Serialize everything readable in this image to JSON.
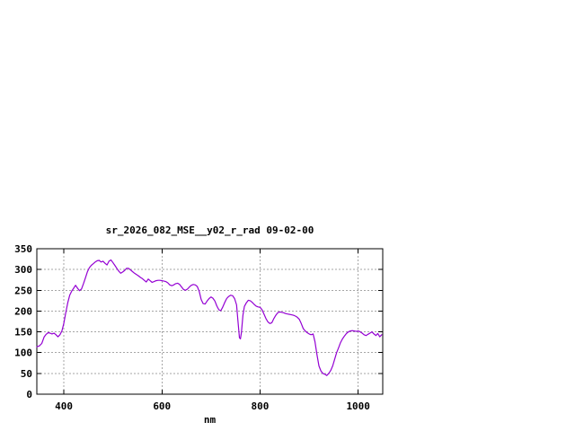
{
  "chart_data": {
    "type": "line",
    "title": "sr_2026_082_MSE__y02_r_rad 09-02-00",
    "xlabel": "nm",
    "ylabel": "",
    "xlim": [
      345,
      1050
    ],
    "ylim": [
      0,
      350
    ],
    "xticks": [
      400,
      600,
      800,
      1000
    ],
    "yticks": [
      0,
      50,
      100,
      150,
      200,
      250,
      300,
      350
    ],
    "grid": "on",
    "legend": "none",
    "line_color": "#9400D3",
    "grid_color": "#A6A6A6",
    "border_color": "#000000",
    "points": [
      [
        345,
        114
      ],
      [
        350,
        116
      ],
      [
        355,
        122
      ],
      [
        360,
        138
      ],
      [
        364,
        144
      ],
      [
        368,
        148
      ],
      [
        372,
        147
      ],
      [
        376,
        145
      ],
      [
        380,
        147
      ],
      [
        384,
        143
      ],
      [
        388,
        138
      ],
      [
        392,
        143
      ],
      [
        396,
        152
      ],
      [
        400,
        170
      ],
      [
        404,
        196
      ],
      [
        408,
        220
      ],
      [
        412,
        238
      ],
      [
        416,
        248
      ],
      [
        420,
        255
      ],
      [
        424,
        262
      ],
      [
        428,
        255
      ],
      [
        432,
        249
      ],
      [
        436,
        253
      ],
      [
        440,
        266
      ],
      [
        444,
        280
      ],
      [
        448,
        294
      ],
      [
        452,
        304
      ],
      [
        456,
        310
      ],
      [
        460,
        314
      ],
      [
        464,
        318
      ],
      [
        468,
        321
      ],
      [
        472,
        322
      ],
      [
        476,
        318
      ],
      [
        480,
        320
      ],
      [
        484,
        315
      ],
      [
        488,
        311
      ],
      [
        492,
        320
      ],
      [
        496,
        323
      ],
      [
        500,
        317
      ],
      [
        504,
        310
      ],
      [
        508,
        303
      ],
      [
        512,
        296
      ],
      [
        516,
        291
      ],
      [
        520,
        294
      ],
      [
        524,
        298
      ],
      [
        528,
        303
      ],
      [
        532,
        303
      ],
      [
        536,
        299
      ],
      [
        540,
        295
      ],
      [
        544,
        291
      ],
      [
        548,
        288
      ],
      [
        552,
        285
      ],
      [
        556,
        281
      ],
      [
        560,
        278
      ],
      [
        564,
        274
      ],
      [
        568,
        270
      ],
      [
        572,
        277
      ],
      [
        576,
        273
      ],
      [
        580,
        269
      ],
      [
        584,
        271
      ],
      [
        588,
        273
      ],
      [
        592,
        274
      ],
      [
        596,
        274
      ],
      [
        600,
        273
      ],
      [
        604,
        272
      ],
      [
        608,
        271
      ],
      [
        612,
        268
      ],
      [
        616,
        263
      ],
      [
        620,
        261
      ],
      [
        624,
        263
      ],
      [
        628,
        266
      ],
      [
        632,
        267
      ],
      [
        636,
        264
      ],
      [
        640,
        258
      ],
      [
        644,
        252
      ],
      [
        648,
        250
      ],
      [
        652,
        253
      ],
      [
        656,
        258
      ],
      [
        660,
        262
      ],
      [
        664,
        264
      ],
      [
        668,
        263
      ],
      [
        672,
        259
      ],
      [
        676,
        247
      ],
      [
        680,
        228
      ],
      [
        684,
        218
      ],
      [
        688,
        217
      ],
      [
        692,
        224
      ],
      [
        696,
        230
      ],
      [
        700,
        234
      ],
      [
        704,
        231
      ],
      [
        708,
        224
      ],
      [
        712,
        212
      ],
      [
        716,
        203
      ],
      [
        720,
        201
      ],
      [
        724,
        210
      ],
      [
        728,
        221
      ],
      [
        732,
        230
      ],
      [
        736,
        235
      ],
      [
        740,
        238
      ],
      [
        744,
        237
      ],
      [
        748,
        230
      ],
      [
        752,
        215
      ],
      [
        755,
        175
      ],
      [
        758,
        136
      ],
      [
        760,
        133
      ],
      [
        762,
        148
      ],
      [
        765,
        190
      ],
      [
        768,
        211
      ],
      [
        772,
        220
      ],
      [
        776,
        226
      ],
      [
        780,
        225
      ],
      [
        784,
        221
      ],
      [
        788,
        216
      ],
      [
        792,
        212
      ],
      [
        796,
        210
      ],
      [
        800,
        209
      ],
      [
        804,
        203
      ],
      [
        808,
        193
      ],
      [
        812,
        182
      ],
      [
        816,
        174
      ],
      [
        820,
        170
      ],
      [
        824,
        172
      ],
      [
        828,
        182
      ],
      [
        832,
        190
      ],
      [
        836,
        196
      ],
      [
        840,
        198
      ],
      [
        844,
        197
      ],
      [
        848,
        196
      ],
      [
        852,
        194
      ],
      [
        856,
        193
      ],
      [
        860,
        192
      ],
      [
        864,
        191
      ],
      [
        868,
        190
      ],
      [
        872,
        188
      ],
      [
        876,
        185
      ],
      [
        880,
        180
      ],
      [
        884,
        170
      ],
      [
        888,
        158
      ],
      [
        892,
        152
      ],
      [
        896,
        148
      ],
      [
        900,
        145
      ],
      [
        904,
        143
      ],
      [
        908,
        145
      ],
      [
        912,
        126
      ],
      [
        916,
        95
      ],
      [
        920,
        68
      ],
      [
        924,
        56
      ],
      [
        928,
        50
      ],
      [
        932,
        48
      ],
      [
        936,
        45
      ],
      [
        940,
        50
      ],
      [
        944,
        57
      ],
      [
        948,
        68
      ],
      [
        952,
        84
      ],
      [
        956,
        100
      ],
      [
        960,
        112
      ],
      [
        964,
        124
      ],
      [
        968,
        133
      ],
      [
        972,
        140
      ],
      [
        976,
        146
      ],
      [
        980,
        150
      ],
      [
        984,
        152
      ],
      [
        988,
        153
      ],
      [
        992,
        152
      ],
      [
        996,
        151
      ],
      [
        1000,
        152
      ],
      [
        1004,
        150
      ],
      [
        1008,
        147
      ],
      [
        1012,
        143
      ],
      [
        1016,
        141
      ],
      [
        1020,
        144
      ],
      [
        1024,
        147
      ],
      [
        1028,
        150
      ],
      [
        1032,
        145
      ],
      [
        1036,
        141
      ],
      [
        1040,
        146
      ],
      [
        1044,
        138
      ],
      [
        1048,
        143
      ]
    ]
  }
}
